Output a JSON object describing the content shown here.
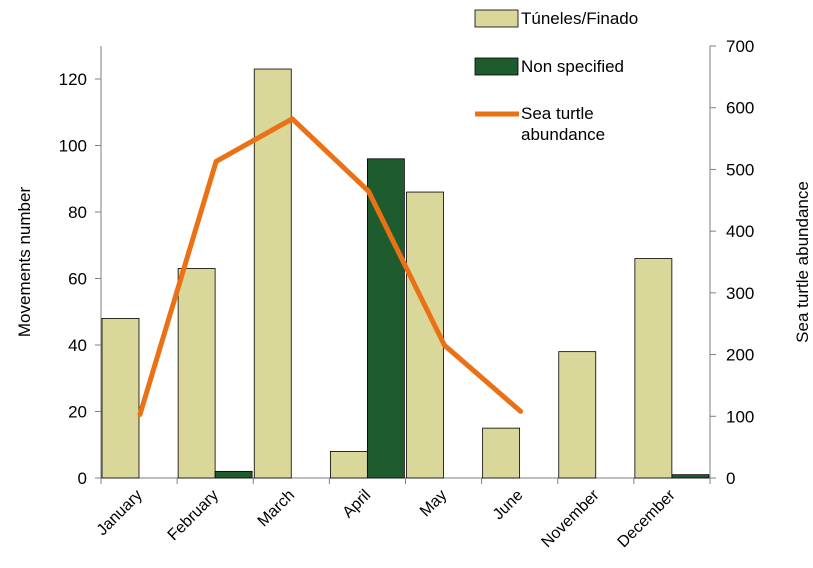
{
  "chart_data": {
    "type": "bar",
    "categories": [
      "January",
      "February",
      "March",
      "April",
      "May",
      "June",
      "November",
      "December"
    ],
    "series": [
      {
        "name": "Túneles/Finado",
        "kind": "bar",
        "axis": "left",
        "color": "#dad79a",
        "values": [
          48,
          63,
          123,
          8,
          86,
          15,
          38,
          66
        ]
      },
      {
        "name": "Non specified",
        "kind": "bar",
        "axis": "left",
        "color": "#1e5c2e",
        "values": [
          0,
          2,
          0,
          96,
          0,
          0,
          0,
          1
        ]
      },
      {
        "name": "Sea turtle abundance",
        "name_lines": [
          "Sea turtle",
          "abundance"
        ],
        "kind": "line",
        "axis": "right",
        "color": "#ea7115",
        "values": [
          103,
          513,
          582,
          465,
          215,
          108,
          null,
          null
        ]
      }
    ],
    "ylabel": "Movements number",
    "y2label": "Sea turtle abundance",
    "ylim": [
      0,
      130
    ],
    "y2lim": [
      0,
      700
    ],
    "yticks": [
      0,
      20,
      40,
      60,
      80,
      100,
      120
    ],
    "y2ticks": [
      0,
      100,
      200,
      300,
      400,
      500,
      600,
      700
    ],
    "legend_position": "top-right",
    "grid": false
  }
}
